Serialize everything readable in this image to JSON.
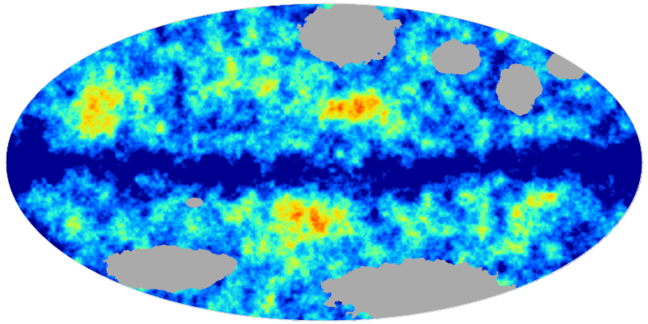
{
  "map": {
    "projection": "mollweide",
    "colormap": "jet",
    "mask_color": "#aaaaaa",
    "background_color": "#ffffff",
    "colormap_stops": [
      "#00008f",
      "#0050ff",
      "#00b0ff",
      "#30ffd0",
      "#c0ff40",
      "#ffd800",
      "#ff7000",
      "#e00000",
      "#800000"
    ]
  }
}
